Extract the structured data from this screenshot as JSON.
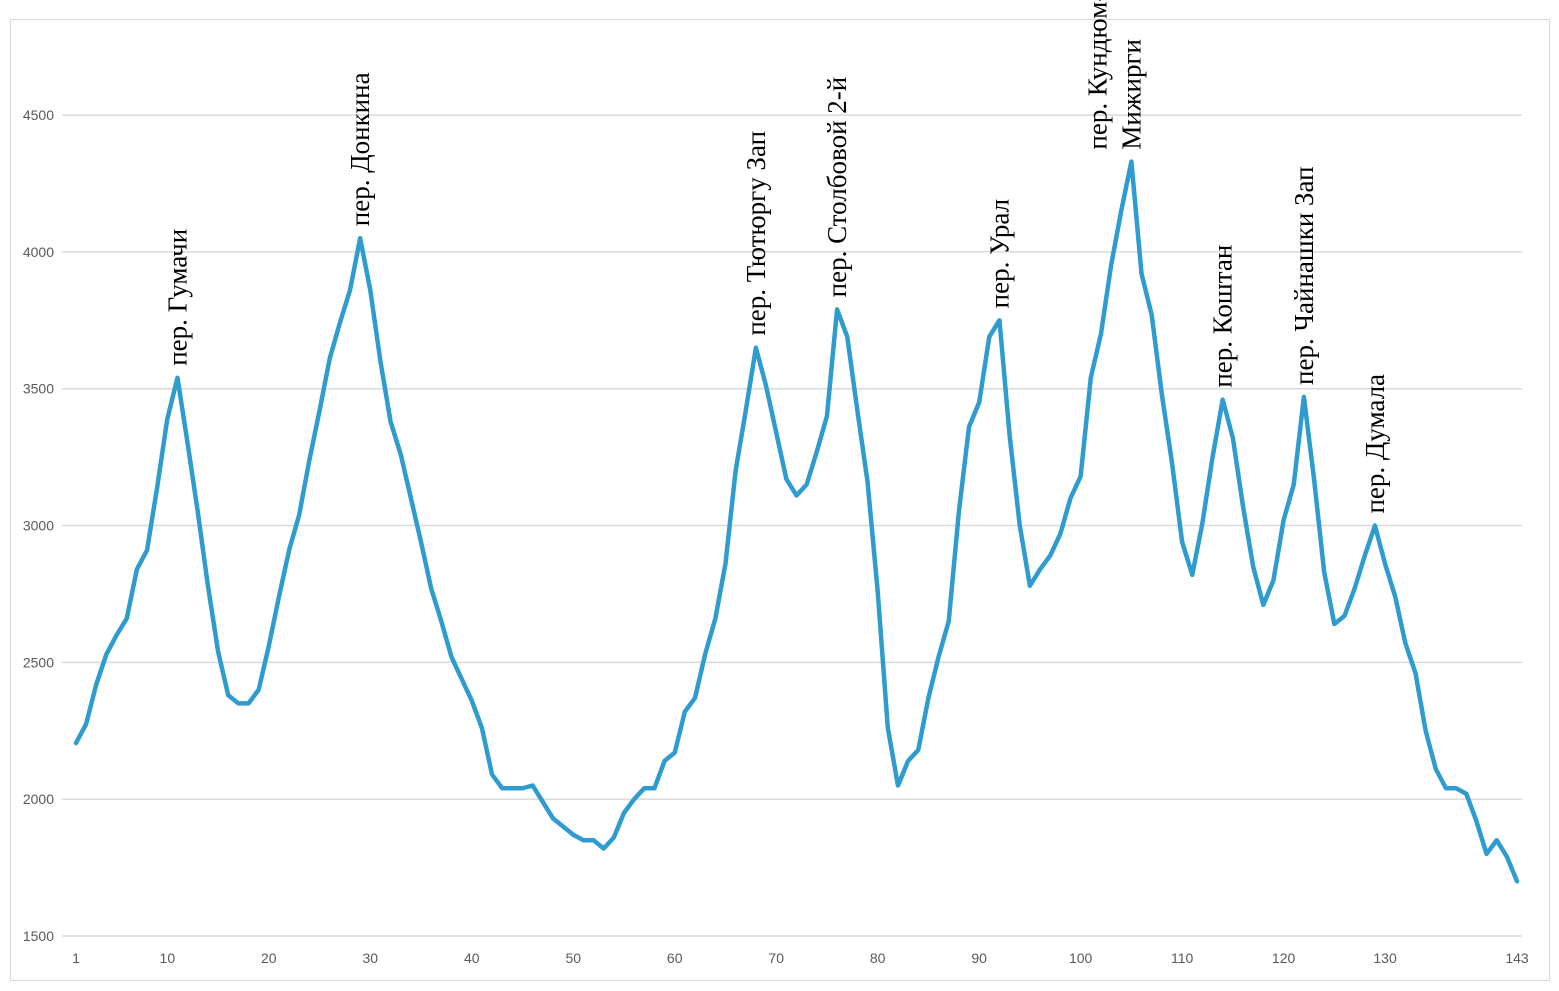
{
  "chart_data": {
    "type": "line",
    "title": "",
    "xlabel": "",
    "ylabel": "",
    "xlim": [
      1,
      143
    ],
    "ylim": [
      1500,
      4800
    ],
    "grid": true,
    "legend": "none",
    "line_color": "#2e9ccf",
    "y_ticks": [
      1500,
      2000,
      2500,
      3000,
      3500,
      4000,
      4500
    ],
    "x_ticks": [
      1,
      10,
      20,
      30,
      40,
      50,
      60,
      70,
      80,
      90,
      100,
      110,
      120,
      130,
      143
    ],
    "series": [
      {
        "values": [
          2205,
          2275,
          2420,
          2530,
          2600,
          2660,
          2840,
          2910,
          3140,
          3390,
          3540,
          3300,
          3050,
          2780,
          2540,
          2380,
          2350,
          2350,
          2400,
          2560,
          2740,
          2910,
          3040,
          3240,
          3420,
          3610,
          3740,
          3860,
          4050,
          3860,
          3600,
          3380,
          3260,
          3100,
          2940,
          2770,
          2650,
          2520,
          2440,
          2360,
          2260,
          2090,
          2040,
          2040,
          2040,
          2050,
          1990,
          1930,
          1900,
          1870,
          1850,
          1850,
          1820,
          1860,
          1950,
          2000,
          2040,
          2040,
          2140,
          2170,
          2320,
          2370,
          2530,
          2660,
          2860,
          3200,
          3420,
          3650,
          3510,
          3340,
          3170,
          3110,
          3150,
          3270,
          3400,
          3790,
          3690,
          3420,
          3160,
          2760,
          2260,
          2050,
          2140,
          2180,
          2370,
          2520,
          2650,
          3050,
          3360,
          3450,
          3690,
          3750,
          3330,
          3000,
          2780,
          2840,
          2890,
          2970,
          3100,
          3180,
          3540,
          3700,
          3950,
          4150,
          4330,
          3920,
          3770,
          3480,
          3230,
          2940,
          2820,
          3010,
          3250,
          3460,
          3320,
          3070,
          2850,
          2710,
          2800,
          3020,
          3150,
          3470,
          3170,
          2830,
          2640,
          2670,
          2770,
          2890,
          3000,
          2860,
          2740,
          2570,
          2460,
          2250,
          2110,
          2040,
          2040,
          2020,
          1920,
          1800,
          1850,
          1790,
          1700
        ]
      }
    ],
    "annotations": [
      {
        "x": 11,
        "lines": [
          "пер. Гумачи"
        ]
      },
      {
        "x": 29,
        "lines": [
          "пер. Донкина"
        ]
      },
      {
        "x": 68,
        "lines": [
          "пер. Тютюргу Зап"
        ]
      },
      {
        "x": 76,
        "lines": [
          "пер. Столбовой 2-й"
        ]
      },
      {
        "x": 92,
        "lines": [
          "пер. Урал"
        ]
      },
      {
        "x": 105,
        "lines": [
          "пер. Кундюм-",
          "Мижирги"
        ]
      },
      {
        "x": 114,
        "lines": [
          "пер. Коштан"
        ]
      },
      {
        "x": 122,
        "lines": [
          "пер. Чайнашки Зап"
        ]
      },
      {
        "x": 129,
        "lines": [
          "пер. Думала"
        ]
      }
    ]
  }
}
